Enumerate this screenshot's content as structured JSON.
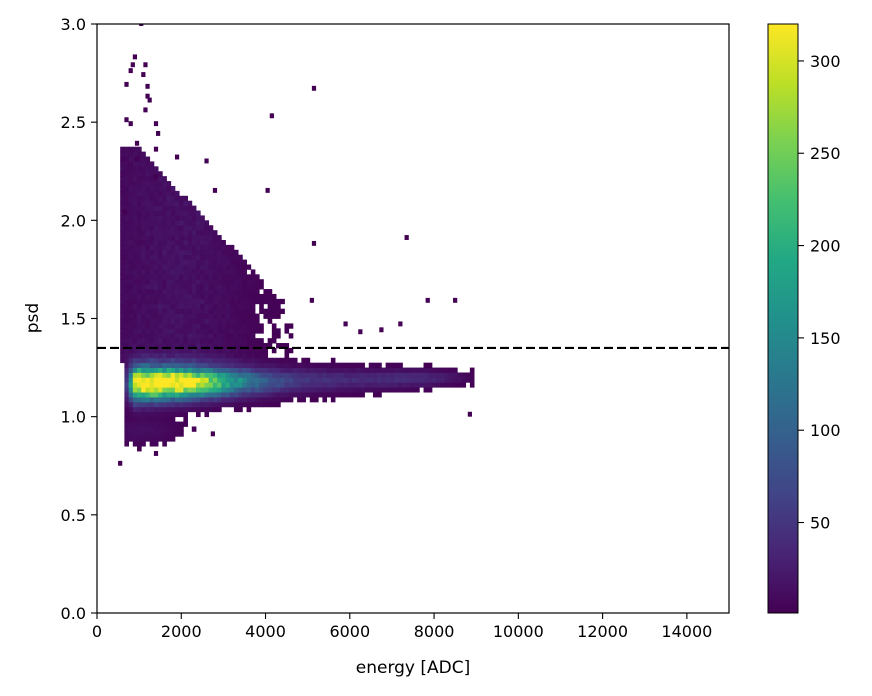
{
  "chart_data": {
    "type": "heatmap",
    "title": "",
    "xlabel": "energy [ADC]",
    "ylabel": "psd",
    "xlim": [
      0,
      15000
    ],
    "ylim": [
      0.0,
      3.0
    ],
    "xticks": [
      0,
      2000,
      4000,
      6000,
      8000,
      10000,
      12000,
      14000
    ],
    "xtick_labels": [
      "0",
      "2000",
      "4000",
      "6000",
      "8000",
      "10000",
      "12000",
      "14000"
    ],
    "yticks": [
      0.0,
      0.5,
      1.0,
      1.5,
      2.0,
      2.5,
      3.0
    ],
    "ytick_labels": [
      "0.0",
      "0.5",
      "1.0",
      "1.5",
      "2.0",
      "2.5",
      "3.0"
    ],
    "colormap": "viridis",
    "colorbar": {
      "range": [
        1,
        320
      ],
      "ticks": [
        50,
        100,
        150,
        200,
        250,
        300
      ],
      "tick_labels": [
        "50",
        "100",
        "150",
        "200",
        "250",
        "300"
      ]
    },
    "bin_width_x": 100,
    "bin_height_y": 0.025,
    "empty_bins": "white",
    "threshold_line": {
      "y": 1.35,
      "style": "dashed",
      "color": "#000000"
    },
    "distribution": {
      "main_band": {
        "x_range": [
          700,
          8900
        ],
        "y_center_at_x_start": 1.17,
        "y_center_at_x_end": 1.2,
        "peak_counts": 320,
        "peak_x": 1500,
        "peak_y": 1.16
      },
      "upper_cloud": {
        "x_range": [
          550,
          4800
        ],
        "y_range": [
          1.35,
          2.3
        ],
        "typical_counts": 20
      },
      "low_tail": {
        "x_range": [
          500,
          2800
        ],
        "y_range": [
          0.75,
          1.0
        ]
      }
    },
    "outliers": [
      [
        1000,
        2.99
      ],
      [
        850,
        2.82
      ],
      [
        800,
        2.78
      ],
      [
        750,
        2.75
      ],
      [
        1100,
        2.78
      ],
      [
        1050,
        2.73
      ],
      [
        650,
        2.68
      ],
      [
        1150,
        2.67
      ],
      [
        1150,
        2.62
      ],
      [
        5100,
        2.66
      ],
      [
        1200,
        2.6
      ],
      [
        1100,
        2.55
      ],
      [
        650,
        2.5
      ],
      [
        750,
        2.48
      ],
      [
        1350,
        2.48
      ],
      [
        4100,
        2.52
      ],
      [
        1400,
        2.43
      ],
      [
        900,
        2.38
      ],
      [
        1350,
        2.35
      ],
      [
        900,
        2.3
      ],
      [
        1850,
        2.31
      ],
      [
        2550,
        2.29
      ],
      [
        1350,
        2.21
      ],
      [
        4000,
        2.14
      ],
      [
        2750,
        2.14
      ],
      [
        600,
        2.03
      ],
      [
        5100,
        1.87
      ],
      [
        7300,
        1.9
      ],
      [
        7800,
        1.58
      ],
      [
        8450,
        1.58
      ],
      [
        5050,
        1.58
      ],
      [
        5850,
        1.46
      ],
      [
        6200,
        1.42
      ],
      [
        7150,
        1.46
      ],
      [
        6700,
        1.43
      ],
      [
        8800,
        1.0
      ],
      [
        500,
        0.75
      ],
      [
        1350,
        0.8
      ],
      [
        2700,
        0.9
      ]
    ]
  }
}
